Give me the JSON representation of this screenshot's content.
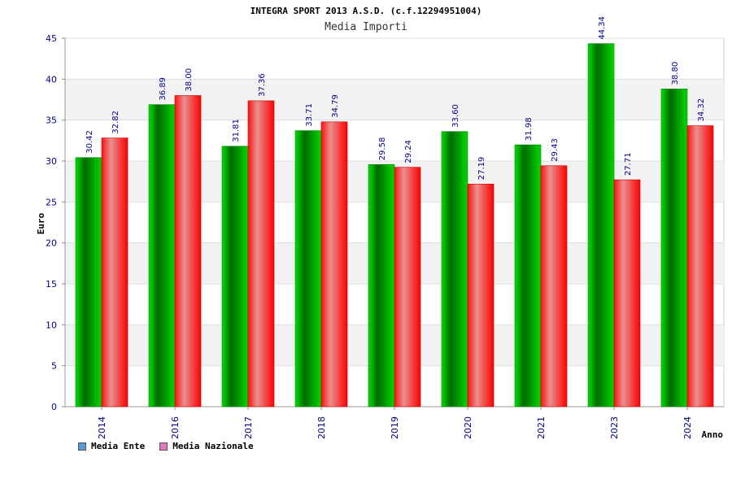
{
  "chart_data": {
    "type": "bar",
    "title": "INTEGRA SPORT 2013 A.S.D. (c.f.12294951004)",
    "subtitle": "Media Importi",
    "xlabel": "Anno",
    "ylabel": "Euro",
    "ylim": [
      0,
      45
    ],
    "yticks": [
      0,
      5,
      10,
      15,
      20,
      25,
      30,
      35,
      40,
      45
    ],
    "grid": true,
    "legend_position": "bottom-left",
    "categories": [
      "2014",
      "2016",
      "2017",
      "2018",
      "2019",
      "2020",
      "2021",
      "2023",
      "2024"
    ],
    "series": [
      {
        "name": "Media Ente",
        "values": [
          30.42,
          36.89,
          31.81,
          33.71,
          29.58,
          33.6,
          31.98,
          44.34,
          38.8
        ],
        "labels": [
          "30.42",
          "36.89",
          "31.81",
          "33.71",
          "29.58",
          "33.60",
          "31.98",
          "44.34",
          "38.80"
        ],
        "color": "#00b000",
        "legend_color": "#5b9bd5"
      },
      {
        "name": "Media Nazionale",
        "values": [
          32.82,
          38.0,
          37.36,
          34.79,
          29.24,
          27.19,
          29.43,
          27.71,
          34.32
        ],
        "labels": [
          "32.82",
          "38.00",
          "37.36",
          "34.79",
          "29.24",
          "27.19",
          "29.43",
          "27.71",
          "34.32"
        ],
        "color": "#ff0000",
        "legend_color": "#e377c2"
      }
    ]
  }
}
